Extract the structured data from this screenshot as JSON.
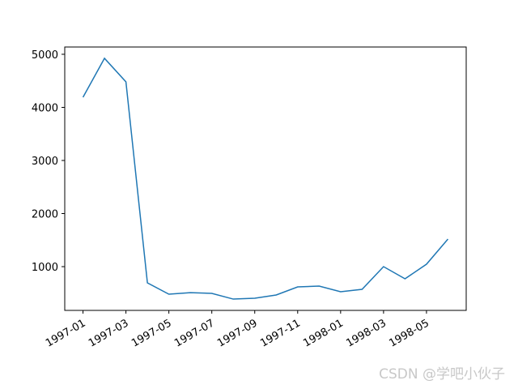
{
  "chart_data": {
    "type": "line",
    "x": [
      "1997-01",
      "1997-02",
      "1997-03",
      "1997-04",
      "1997-05",
      "1997-06",
      "1997-07",
      "1997-08",
      "1997-09",
      "1997-10",
      "1997-11",
      "1997-12",
      "1998-01",
      "1998-02",
      "1998-03",
      "1998-04",
      "1998-05",
      "1998-06"
    ],
    "values": [
      4191,
      4924,
      4481,
      695,
      481,
      510,
      496,
      389,
      405,
      466,
      618,
      634,
      527,
      573,
      1000,
      771,
      1046,
      1519
    ],
    "color": "#1f77b4",
    "ylim": [
      176,
      5137
    ],
    "yticks": [
      1000,
      2000,
      3000,
      4000,
      5000
    ],
    "xticks": [
      "1997-01",
      "1997-03",
      "1997-05",
      "1997-07",
      "1997-09",
      "1997-11",
      "1998-01",
      "1998-03",
      "1998-05"
    ],
    "grid": false
  },
  "watermark": "CSDN @学吧小伙子"
}
